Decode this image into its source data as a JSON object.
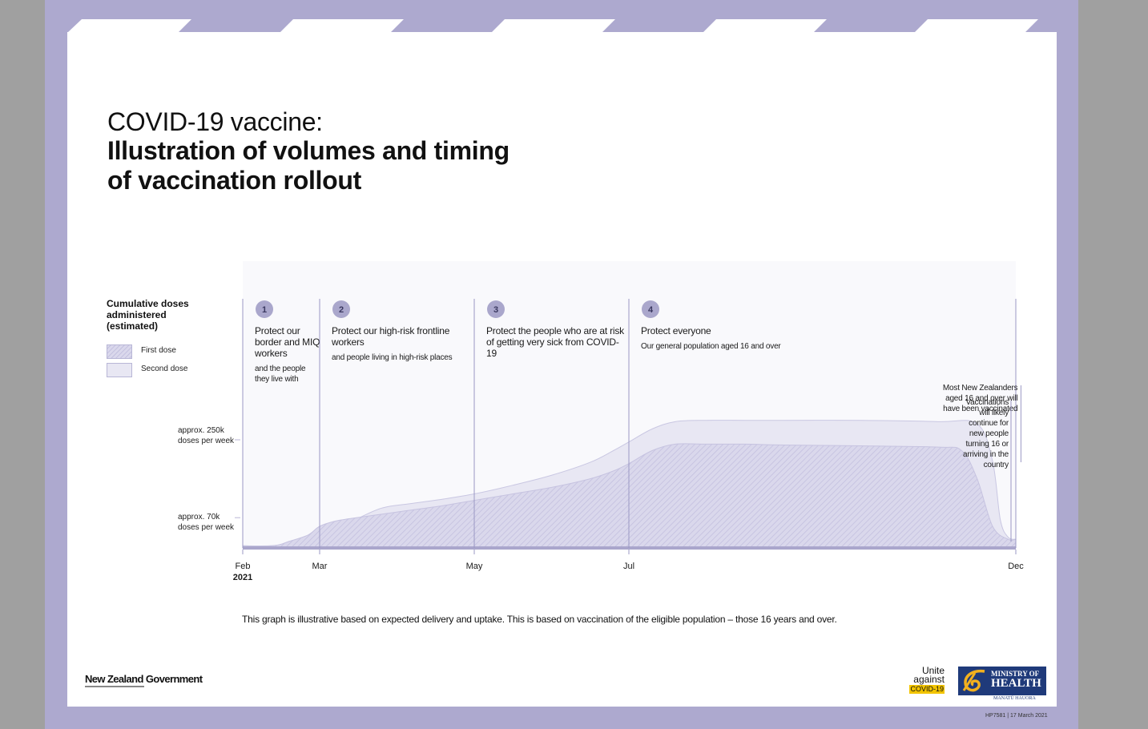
{
  "header": {
    "title_line1": "COVID-19 vaccine:",
    "title_line2": "Illustration of volumes and timing of vaccination rollout"
  },
  "legend": {
    "title": "Cumulative doses administered (estimated)",
    "first_dose": "First dose",
    "second_dose": "Second dose"
  },
  "colors": {
    "frame": "#ada9cf",
    "plot_bg": "#f9f9fc",
    "second_dose_fill": "#e8e7f3",
    "first_dose_fill": "#dad8ec",
    "phase_badge": "#aaa7cc",
    "line": "#9b98c4",
    "moh_blue": "#1f3a7a",
    "unite_yellow": "#f2c400"
  },
  "chart_data": {
    "type": "area",
    "title": "Illustration of volumes and timing of vaccination rollout",
    "ylabel": "Cumulative doses administered (estimated)",
    "x_ticks": [
      "Feb",
      "Mar",
      "May",
      "Jul",
      "Dec"
    ],
    "x_ticks_month": [
      2,
      3,
      5,
      7,
      12
    ],
    "x_year_label": "2021",
    "y_ticks": [
      {
        "value": 70,
        "line1": "approx. 70k",
        "line2": "doses per week"
      },
      {
        "value": 250,
        "line1": "approx. 250k",
        "line2": "doses per week"
      }
    ],
    "ylim": [
      0,
      350
    ],
    "series": [
      {
        "name": "Second dose",
        "month": [
          2.0,
          2.35,
          2.6,
          2.85,
          3.0,
          3.15,
          3.4,
          3.8,
          4.2,
          4.6,
          5.0,
          5.5,
          6.0,
          6.5,
          6.8,
          7.0,
          7.3,
          7.6,
          8.0,
          8.5,
          9.0,
          10.0,
          11.0,
          11.5,
          11.7,
          11.8,
          11.9,
          12.0
        ],
        "values": [
          5,
          5,
          10,
          18,
          28,
          40,
          60,
          92,
          103,
          113,
          125,
          145,
          168,
          198,
          225,
          245,
          275,
          292,
          295,
          295,
          295,
          295,
          292,
          287,
          200,
          65,
          25,
          20
        ]
      },
      {
        "name": "First dose",
        "month": [
          2.0,
          2.4,
          2.6,
          2.85,
          3.0,
          3.2,
          3.4,
          3.8,
          4.2,
          4.6,
          5.0,
          5.5,
          6.0,
          6.5,
          6.8,
          7.0,
          7.3,
          7.6,
          8.0,
          8.5,
          9.0,
          10.0,
          11.0,
          11.3,
          11.5,
          11.7,
          11.9,
          12.0
        ],
        "values": [
          5,
          5,
          15,
          30,
          50,
          62,
          68,
          78,
          88,
          98,
          110,
          125,
          140,
          160,
          178,
          195,
          225,
          240,
          240,
          240,
          238,
          236,
          233,
          225,
          160,
          50,
          20,
          20
        ]
      }
    ],
    "phases": [
      {
        "month": 2.0,
        "number": "1",
        "title": "Protect our border and MIQ workers",
        "sub": "and the people they live with"
      },
      {
        "month": 3.0,
        "number": "2",
        "title": "Protect our high-risk frontline workers",
        "sub": "and people living in high-risk places"
      },
      {
        "month": 5.0,
        "number": "3",
        "title": "Protect the people who are at risk of getting very sick from COVID-19",
        "sub": ""
      },
      {
        "month": 7.0,
        "number": "4",
        "title": "Protect everyone",
        "sub": "Our general population aged 16 and over"
      }
    ],
    "annotations": [
      {
        "month": 11.0,
        "text": "Most New Zealanders aged 16 and over will have been vaccinated"
      },
      {
        "month": 12.0,
        "text": "Vaccinations will likely continue for new people turning 16 or arriving in the country"
      }
    ]
  },
  "footnote": "This graph is illustrative based on expected delivery and uptake. This is based on vaccination of the eligible population – those 16 years and over.",
  "footer": {
    "nz_government": "New Zealand Government",
    "unite_line1": "Unite",
    "unite_line2": "against",
    "unite_line3": "COVID-19",
    "moh_line1": "MINISTRY OF",
    "moh_line2": "HEALTH",
    "moh_sub": "MANATŪ HAUORA",
    "doc_id": "HP7581  |  17 March 2021"
  }
}
